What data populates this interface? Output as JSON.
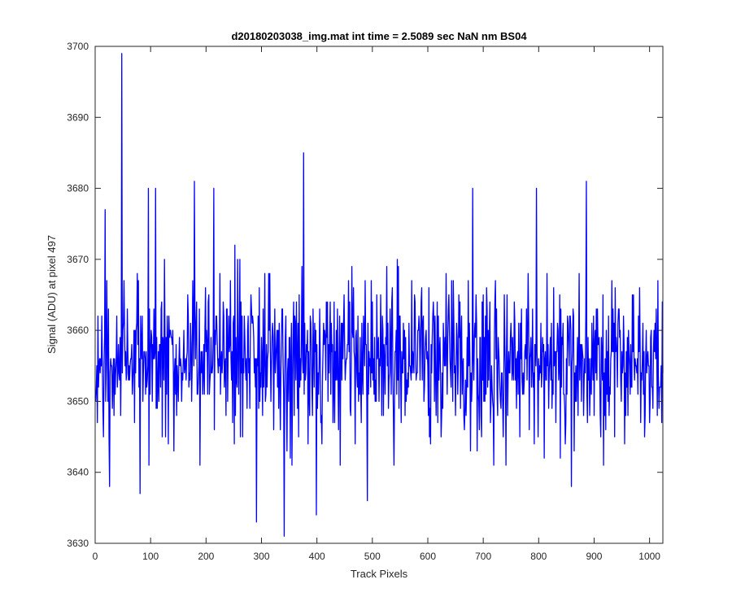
{
  "chart_data": {
    "type": "line",
    "title": "d20180203038_img.mat int time = 2.5089 sec  NaN nm BS04",
    "xlabel": "Track Pixels",
    "ylabel": "Signal (ADU) at pixel 497",
    "xlim": [
      0,
      1024
    ],
    "ylim": [
      3630,
      3700
    ],
    "xticks": [
      0,
      100,
      200,
      300,
      400,
      500,
      600,
      700,
      800,
      900,
      1000
    ],
    "yticks": [
      3630,
      3640,
      3650,
      3660,
      3670,
      3680,
      3690,
      3700
    ],
    "grid": false,
    "box": true,
    "line_color": "#0000ff",
    "series": [
      {
        "n_points": 1024,
        "mean": 3656,
        "notable_points": [
          {
            "x": 17,
            "y": 3677
          },
          {
            "x": 25,
            "y": 3638
          },
          {
            "x": 47,
            "y": 3699
          },
          {
            "x": 80,
            "y": 3637
          },
          {
            "x": 95,
            "y": 3680
          },
          {
            "x": 108,
            "y": 3680
          },
          {
            "x": 178,
            "y": 3681
          },
          {
            "x": 213,
            "y": 3680
          },
          {
            "x": 290,
            "y": 3633
          },
          {
            "x": 340,
            "y": 3631
          },
          {
            "x": 375,
            "y": 3685
          },
          {
            "x": 398,
            "y": 3634
          },
          {
            "x": 490,
            "y": 3636
          },
          {
            "x": 680,
            "y": 3680
          },
          {
            "x": 795,
            "y": 3680
          },
          {
            "x": 858,
            "y": 3638
          },
          {
            "x": 885,
            "y": 3681
          }
        ]
      }
    ]
  }
}
